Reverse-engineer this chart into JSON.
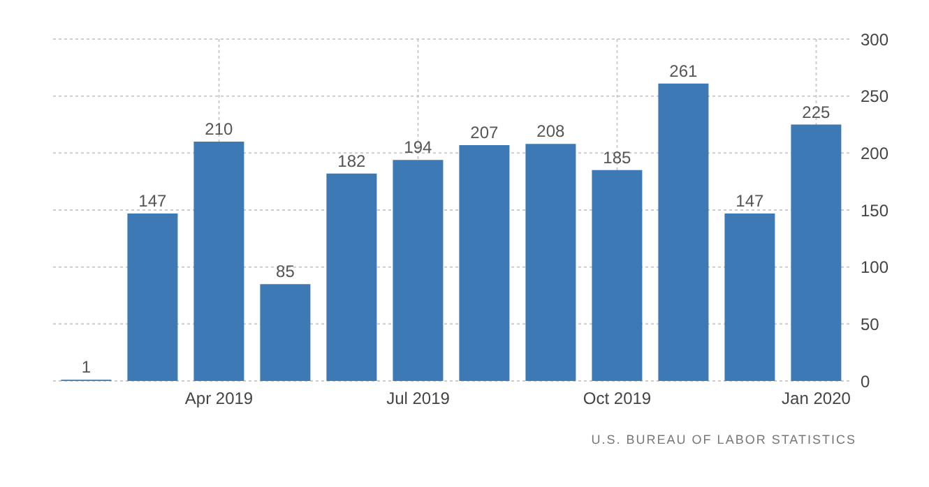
{
  "chart_data": {
    "type": "bar",
    "categories": [
      null,
      null,
      "Apr 2019",
      null,
      null,
      "Jul 2019",
      null,
      null,
      "Oct 2019",
      null,
      null,
      "Jan 2020"
    ],
    "values": [
      1,
      147,
      210,
      85,
      182,
      194,
      207,
      208,
      185,
      261,
      147,
      225
    ],
    "color": "#3d7ab5",
    "ylim": [
      0,
      300
    ],
    "yticks": [
      0,
      50,
      100,
      150,
      200,
      250,
      300
    ],
    "grid": true,
    "data_labels": true,
    "annotations": [
      "U.S. BUREAU OF LABOR STATISTICS"
    ]
  }
}
